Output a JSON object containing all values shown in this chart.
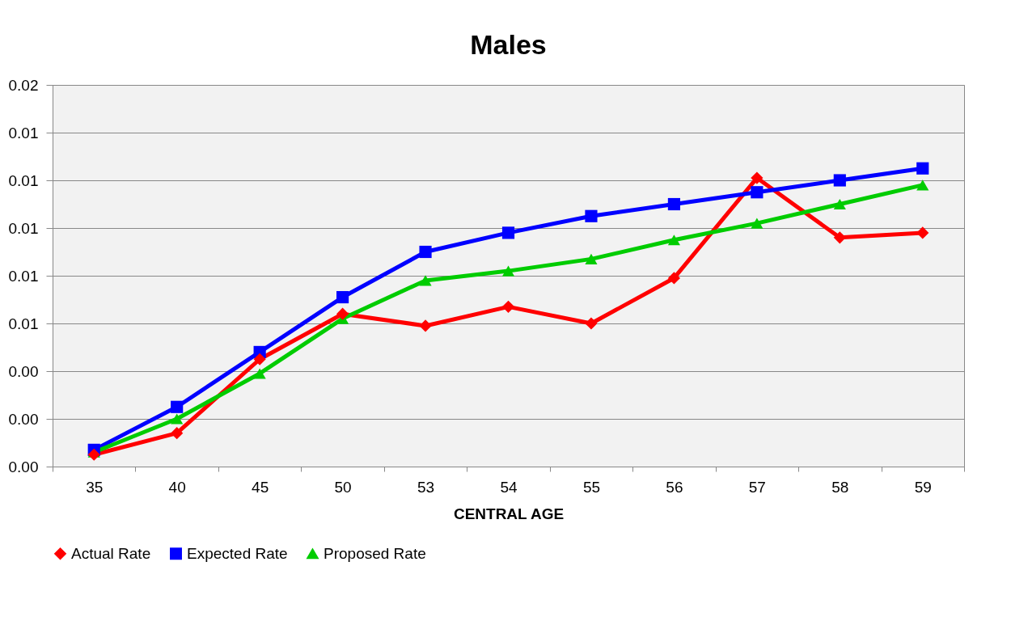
{
  "chart_data": {
    "type": "line",
    "title": "Males",
    "xlabel": "CENTRAL AGE",
    "categories": [
      "35",
      "40",
      "45",
      "50",
      "53",
      "54",
      "55",
      "56",
      "57",
      "58",
      "59"
    ],
    "series": [
      {
        "name": "Actual Rate",
        "color": "#ff0000",
        "marker": "diamond",
        "values": [
          0.0005,
          0.0014,
          0.0045,
          0.0064,
          0.0059,
          0.0067,
          0.006,
          0.0079,
          0.0121,
          0.0096,
          0.0098
        ]
      },
      {
        "name": "Expected Rate",
        "color": "#0000ff",
        "marker": "square",
        "values": [
          0.0007,
          0.0025,
          0.0048,
          0.0071,
          0.009,
          0.0098,
          0.0105,
          0.011,
          0.0115,
          0.012,
          0.0125
        ]
      },
      {
        "name": "Proposed Rate",
        "color": "#00cc00",
        "marker": "triangle",
        "values": [
          0.0006,
          0.002,
          0.0039,
          0.0062,
          0.0078,
          0.0082,
          0.0087,
          0.0095,
          0.0102,
          0.011,
          0.0118
        ]
      }
    ],
    "ylim": [
      0,
      0.016
    ],
    "yticks": [
      {
        "value": 0,
        "label": "0.00"
      },
      {
        "value": 0.002,
        "label": "0.00"
      },
      {
        "value": 0.004,
        "label": "0.00"
      },
      {
        "value": 0.006,
        "label": "0.01"
      },
      {
        "value": 0.008,
        "label": "0.01"
      },
      {
        "value": 0.01,
        "label": "0.01"
      },
      {
        "value": 0.012,
        "label": "0.01"
      },
      {
        "value": 0.014,
        "label": "0.01"
      },
      {
        "value": 0.016,
        "label": "0.02"
      }
    ],
    "grid": "y",
    "legend": "bottom",
    "line_style": "solid"
  }
}
